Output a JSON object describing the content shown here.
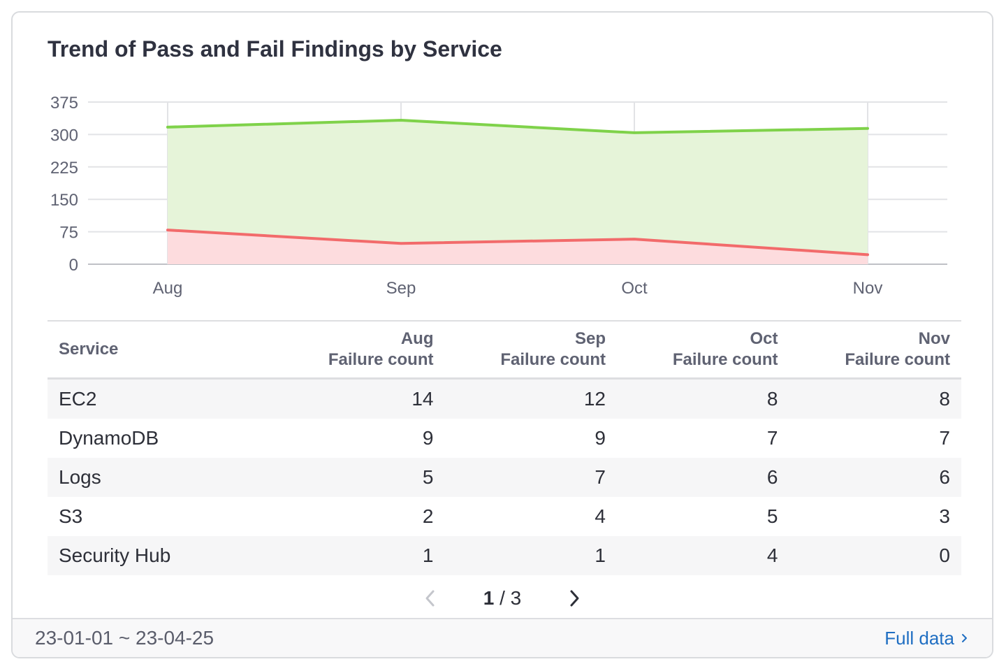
{
  "widget": {
    "title": "Trend of Pass and Fail Findings by Service"
  },
  "chart_data": {
    "type": "area",
    "title": "Trend of Pass and Fail Findings by Service",
    "categories": [
      "Aug",
      "Sep",
      "Oct",
      "Nov"
    ],
    "ylim": [
      0,
      375
    ],
    "yticks": [
      0,
      75,
      150,
      225,
      300,
      375
    ],
    "grid": true,
    "series": [
      {
        "key": "pass",
        "values": [
          317,
          333,
          304,
          314
        ],
        "line_color": "#7fd24a",
        "fill_color": "#e6f4d9"
      },
      {
        "key": "fail",
        "values": [
          79,
          48,
          58,
          22
        ],
        "line_color": "#f26b6b",
        "fill_color": "#fddcde"
      }
    ]
  },
  "table": {
    "headers": [
      {
        "line1": "",
        "line2": "Service"
      },
      {
        "line1": "Aug",
        "line2": "Failure count"
      },
      {
        "line1": "Sep",
        "line2": "Failure count"
      },
      {
        "line1": "Oct",
        "line2": "Failure count"
      },
      {
        "line1": "Nov",
        "line2": "Failure count"
      }
    ],
    "rows": [
      {
        "service": "EC2",
        "values": [
          "14",
          "12",
          "8",
          "8"
        ]
      },
      {
        "service": "DynamoDB",
        "values": [
          "9",
          "9",
          "7",
          "7"
        ]
      },
      {
        "service": "Logs",
        "values": [
          "5",
          "7",
          "6",
          "6"
        ]
      },
      {
        "service": "S3",
        "values": [
          "2",
          "4",
          "5",
          "3"
        ]
      },
      {
        "service": "Security Hub",
        "values": [
          "1",
          "1",
          "4",
          "0"
        ]
      }
    ]
  },
  "pagination": {
    "current": "1",
    "separator": " / ",
    "total": "3"
  },
  "footer": {
    "date_range": "23-01-01 ~ 23-04-25",
    "full_data_label": "Full data"
  },
  "icons": {
    "prev": "chevron-left-icon",
    "next": "chevron-right-icon",
    "link": "chevron-right-small-icon"
  }
}
